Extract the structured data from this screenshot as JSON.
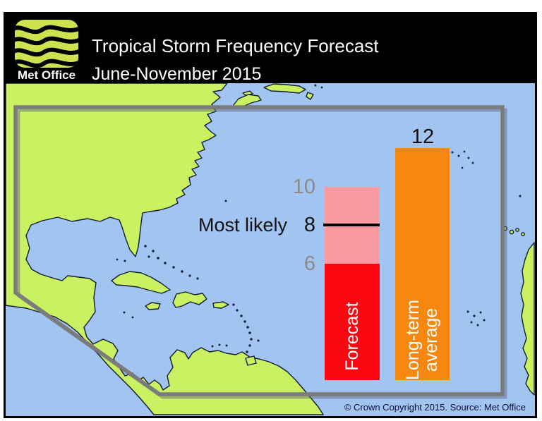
{
  "header": {
    "logo_text": "Met Office",
    "title": "Tropical Storm Frequency Forecast",
    "subtitle": "June-November 2015"
  },
  "chart": {
    "most_likely_label": "Most likely",
    "upper_tick": "10",
    "most_likely_tick": "8",
    "lower_tick": "6",
    "average_value_label": "12",
    "forecast_bar_label": "Forecast",
    "average_bar_label_line1": "Long-term",
    "average_bar_label_line2": "average"
  },
  "footer": {
    "copyright_text": "© Crown Copyright 2015. Source: Met Office"
  },
  "colors": {
    "sea": "#a2c4f0",
    "land": "#c9f162",
    "coastline": "#141c32",
    "forecast_bar": "#fb0712",
    "forecast_range": "#f99ba1",
    "most_likely_line": "#000000",
    "average_bar": "#f6870f",
    "region_outline": "#7b7b7b",
    "header_background": "#000000",
    "logo_lime": "#cde24e",
    "tick_gray": "#8a8a8a"
  },
  "chart_data": {
    "type": "bar",
    "title": "Tropical Storm Frequency Forecast",
    "subtitle": "June-November 2015",
    "categories": [
      "Forecast",
      "Long-term average"
    ],
    "series": [
      {
        "name": "Forecast",
        "most_likely": 8,
        "range_low": 6,
        "range_high": 10
      },
      {
        "name": "Long-term average",
        "value": 12
      }
    ],
    "annotations": [
      "Most likely"
    ],
    "visible_value_labels": [
      10,
      8,
      6,
      12
    ],
    "ylim": [
      0,
      14
    ],
    "axis_visible": false,
    "gridlines": false,
    "legend_position": "labels inside bars",
    "background": "map of North Atlantic hurricane region with grey forecast-area outline"
  }
}
